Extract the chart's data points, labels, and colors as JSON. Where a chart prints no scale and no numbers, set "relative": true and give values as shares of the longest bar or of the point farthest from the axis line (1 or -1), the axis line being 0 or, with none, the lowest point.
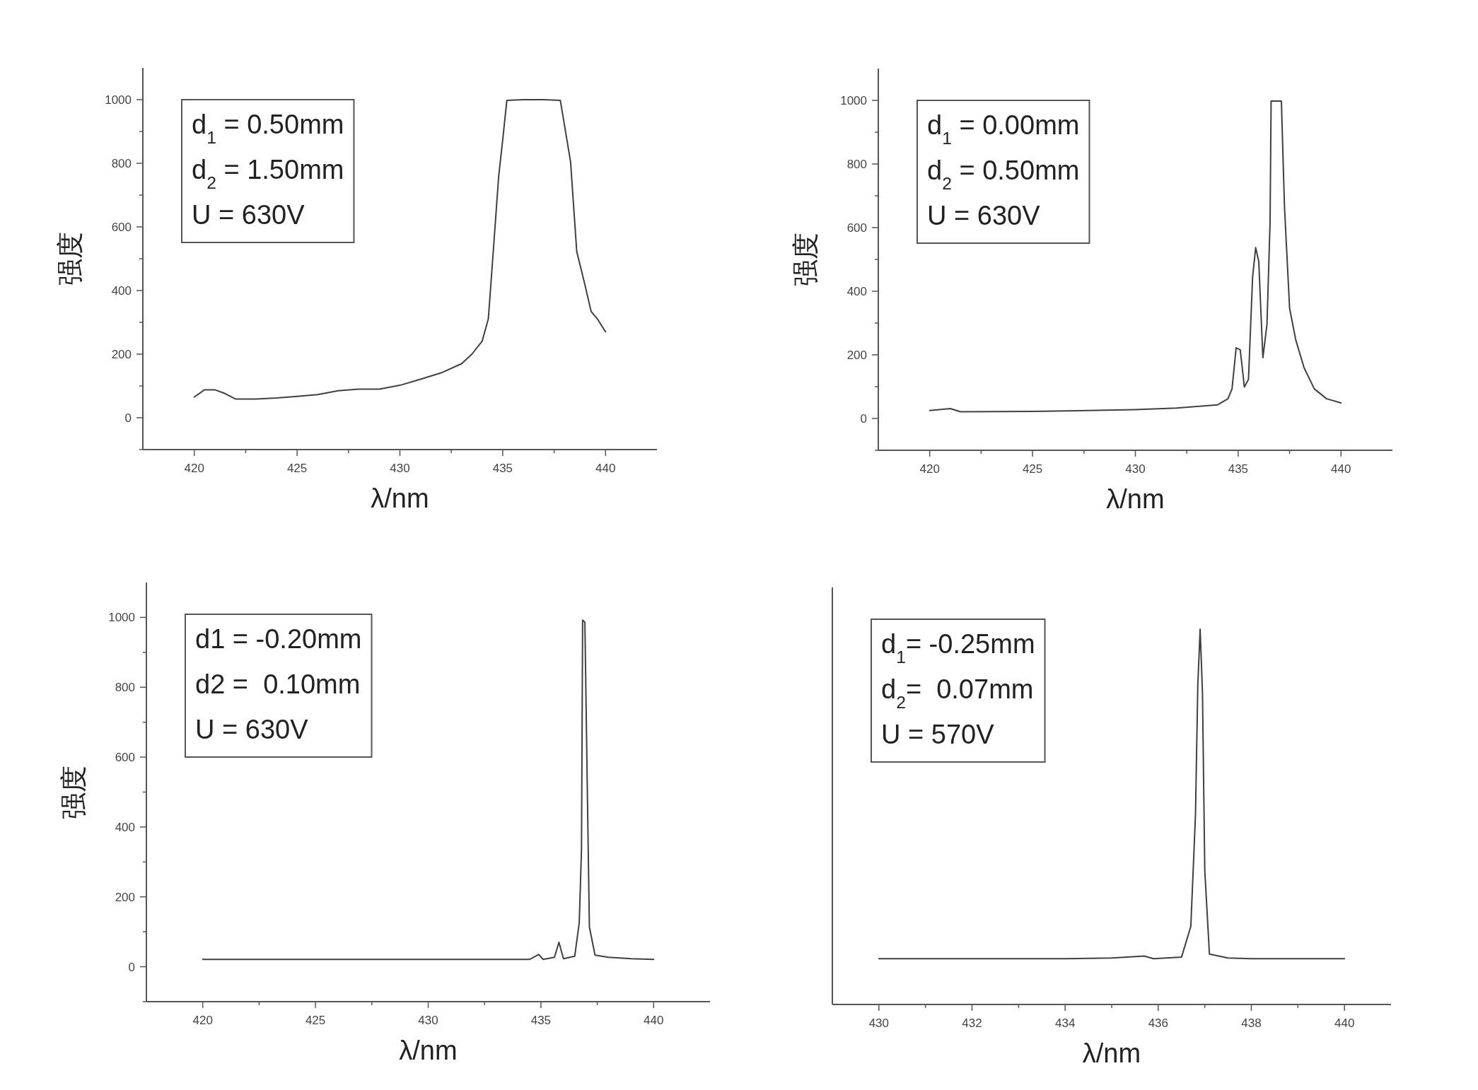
{
  "chart_data": [
    {
      "type": "line",
      "xlabel": "λ/nm",
      "ylabel": "强度",
      "color": "#404040",
      "xlim": [
        417.5,
        442.5
      ],
      "ylim": [
        -100,
        1100
      ],
      "xticks": [
        420,
        {
          "value": 422.5,
          "label": null
        },
        425,
        {
          "value": 427.5,
          "label": null
        },
        430,
        {
          "value": 432.5,
          "label": null
        },
        435,
        {
          "value": 437.5,
          "label": null
        },
        440
      ],
      "yticks": [
        {
          "value": -100,
          "label": null
        },
        0,
        {
          "value": 100,
          "label": null
        },
        200,
        {
          "value": 300,
          "label": null
        },
        400,
        {
          "value": 500,
          "label": null
        },
        600,
        {
          "value": 700,
          "label": null
        },
        800,
        {
          "value": 900,
          "label": null
        },
        1000
      ],
      "annotations": [
        "d$_{1}$ = 0.50mm",
        "d$_{2}$ = 1.50mm",
        "U = 630V"
      ],
      "x": [
        420,
        420.5,
        421,
        421.5,
        422,
        423,
        424,
        425,
        426,
        427,
        428,
        429,
        430,
        431,
        432,
        433,
        433.5,
        434,
        434.3,
        434.5,
        434.8,
        435,
        435.2,
        436,
        437,
        437.8,
        438,
        438.3,
        438.6,
        439,
        439.3,
        439.6,
        440
      ],
      "values": [
        65,
        88,
        88,
        76,
        59,
        59,
        62,
        67,
        73,
        85,
        90,
        90,
        102,
        121,
        141,
        170,
        200,
        241,
        311,
        487,
        757,
        874,
        998,
        1000,
        1000,
        998,
        921,
        804,
        522,
        417,
        334,
        311,
        270
      ]
    },
    {
      "type": "line",
      "xlabel": "λ/nm",
      "ylabel": "强度",
      "color": "#404040",
      "xlim": [
        417.5,
        442.5
      ],
      "ylim": [
        -100,
        1100
      ],
      "xticks": [
        420,
        {
          "value": 422.5,
          "label": null
        },
        425,
        {
          "value": 427.5,
          "label": null
        },
        430,
        {
          "value": 432.5,
          "label": null
        },
        435,
        {
          "value": 437.5,
          "label": null
        },
        440
      ],
      "yticks": [
        {
          "value": -100,
          "label": null
        },
        0,
        {
          "value": 100,
          "label": null
        },
        200,
        {
          "value": 300,
          "label": null
        },
        400,
        {
          "value": 500,
          "label": null
        },
        600,
        {
          "value": 700,
          "label": null
        },
        800,
        {
          "value": 900,
          "label": null
        },
        1000
      ],
      "annotations": [
        "d$_{1}$ = 0.00mm",
        "d$_{2}$ = 0.50mm",
        "U = 630V"
      ],
      "x": [
        420,
        421,
        421.5,
        425,
        430,
        432,
        434,
        434.5,
        434.7,
        434.9,
        435.1,
        435.3,
        435.5,
        435.7,
        435.85,
        436,
        436.2,
        436.4,
        436.55,
        436.6,
        437.1,
        437.25,
        437.5,
        437.8,
        438.2,
        438.7,
        439.3,
        440
      ],
      "values": [
        25,
        31,
        21,
        22,
        28,
        33,
        43,
        62,
        93,
        222,
        216,
        99,
        123,
        444,
        537,
        494,
        191,
        296,
        617,
        998,
        998,
        667,
        346,
        247,
        160,
        93,
        62,
        49
      ]
    },
    {
      "type": "line",
      "xlabel": "λ/nm",
      "ylabel": "强度",
      "color": "#404040",
      "xlim": [
        417.5,
        442.5
      ],
      "ylim": [
        -100,
        1100
      ],
      "xticks": [
        420,
        {
          "value": 422.5,
          "label": null
        },
        425,
        {
          "value": 427.5,
          "label": null
        },
        430,
        {
          "value": 432.5,
          "label": null
        },
        435,
        {
          "value": 437.5,
          "label": null
        },
        440
      ],
      "yticks": [
        {
          "value": -100,
          "label": null
        },
        0,
        {
          "value": 100,
          "label": null
        },
        200,
        {
          "value": 300,
          "label": null
        },
        400,
        {
          "value": 500,
          "label": null
        },
        600,
        {
          "value": 700,
          "label": null
        },
        800,
        {
          "value": 900,
          "label": null
        },
        1000
      ],
      "annotations": [
        "d1 = -0.20mm",
        "d2 =  0.10mm",
        "U = 630V"
      ],
      "x": [
        420,
        430,
        434.5,
        434.9,
        435.1,
        435.6,
        435.8,
        436,
        436.5,
        436.7,
        436.8,
        436.85,
        436.95,
        437.05,
        437.15,
        437.4,
        438,
        439,
        440
      ],
      "values": [
        21,
        21,
        21,
        35,
        21,
        27,
        70,
        23,
        30,
        126,
        335,
        992,
        986,
        544,
        114,
        33,
        27,
        23,
        21
      ]
    },
    {
      "type": "line",
      "xlabel": "λ/nm",
      "color": "#404040",
      "relative": true,
      "xlim": [
        429,
        441
      ],
      "xticks": [
        430,
        {
          "value": 431,
          "label": null
        },
        432,
        {
          "value": 433,
          "label": null
        },
        434,
        {
          "value": 435,
          "label": null
        },
        436,
        {
          "value": 437,
          "label": null
        },
        438,
        {
          "value": 439,
          "label": null
        },
        440
      ],
      "annotations": [
        "d$_{1}$= -0.25mm",
        "d$_{2}$=  0.07mm",
        "U = 570V"
      ],
      "x": [
        430,
        434,
        435,
        435.7,
        435.9,
        436.5,
        436.7,
        436.8,
        436.85,
        436.9,
        436.95,
        437,
        437.1,
        437.5,
        438,
        440
      ],
      "values": [
        0.122,
        0.122,
        0.124,
        0.129,
        0.122,
        0.126,
        0.208,
        0.505,
        0.851,
        1.0,
        0.832,
        0.356,
        0.134,
        0.124,
        0.122,
        0.122
      ]
    }
  ]
}
